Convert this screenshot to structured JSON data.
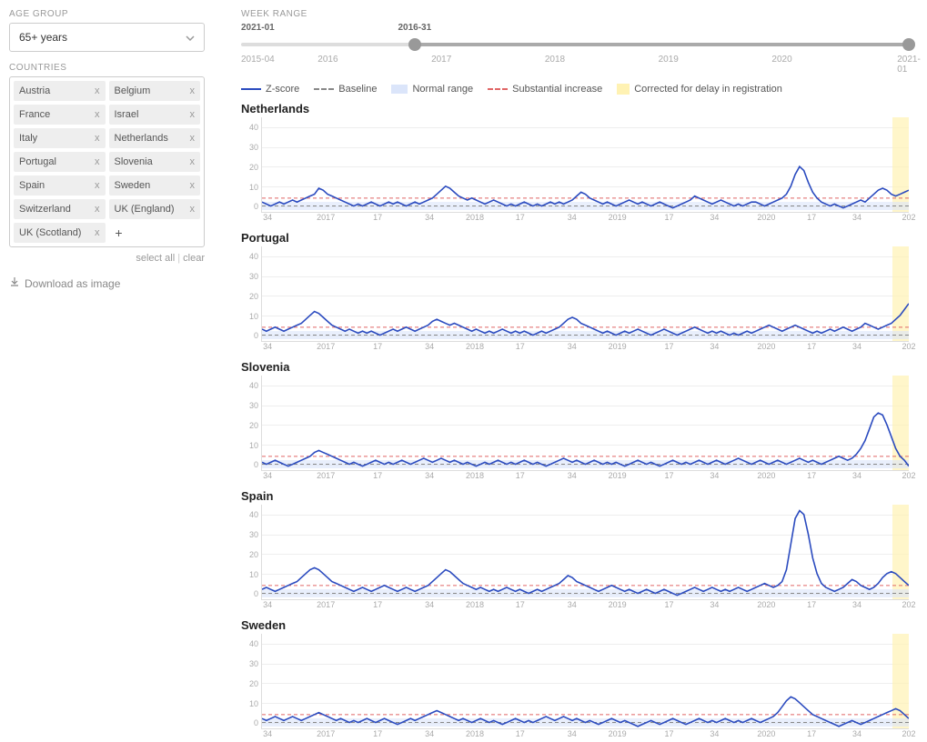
{
  "sidebar": {
    "age_group_label": "AGE GROUP",
    "age_group_value": "65+ years",
    "countries_label": "COUNTRIES",
    "countries": [
      "Austria",
      "Belgium",
      "France",
      "Israel",
      "Italy",
      "Netherlands",
      "Portugal",
      "Slovenia",
      "Spain",
      "Sweden",
      "Switzerland",
      "UK (England)",
      "UK (Scotland)"
    ],
    "select_all": "select all",
    "clear": "clear",
    "download": "Download as image"
  },
  "range": {
    "label": "WEEK RANGE",
    "min_label": "2015-04",
    "max_label": "2021-01",
    "start_label": "2016-31",
    "end_label": "2021-01",
    "start_pct": 26,
    "end_pct": 100,
    "year_ticks": [
      {
        "label": "2016",
        "pct": 13
      },
      {
        "label": "2017",
        "pct": 30
      },
      {
        "label": "2018",
        "pct": 47
      },
      {
        "label": "2019",
        "pct": 64
      },
      {
        "label": "2020",
        "pct": 81
      },
      {
        "label": "2021-01",
        "pct": 100
      }
    ]
  },
  "legend": {
    "zscore": "Z-score",
    "baseline": "Baseline",
    "normal": "Normal range",
    "substantial": "Substantial increase",
    "corrected": "Corrected for delay in registration"
  },
  "chart_common": {
    "y_ticks": [
      0,
      10,
      20,
      30,
      40
    ],
    "y_max": 45,
    "x_ticks": [
      {
        "label": "34",
        "pct": 1
      },
      {
        "label": "2017",
        "pct": 10
      },
      {
        "label": "17",
        "pct": 18
      },
      {
        "label": "34",
        "pct": 26
      },
      {
        "label": "2018",
        "pct": 33
      },
      {
        "label": "17",
        "pct": 40
      },
      {
        "label": "34",
        "pct": 48
      },
      {
        "label": "2019",
        "pct": 55
      },
      {
        "label": "17",
        "pct": 63
      },
      {
        "label": "34",
        "pct": 70
      },
      {
        "label": "2020",
        "pct": 78
      },
      {
        "label": "17",
        "pct": 85
      },
      {
        "label": "34",
        "pct": 92
      },
      {
        "label": "202",
        "pct": 100
      }
    ],
    "baseline_y": 0,
    "substantial_y": 4,
    "normal_band": {
      "low": -2,
      "high": 2
    },
    "correction_band_pct": {
      "from": 97.5,
      "to": 100
    },
    "colors": {
      "series": "#2b4bbf",
      "baseline": "#888888",
      "substantial": "#e06666",
      "normal_band": "#dbe5fa",
      "correction": "#fff2b3",
      "grid": "#eeeeee",
      "axis": "#dddddd",
      "tick_text": "#aaaaaa"
    },
    "line_width": 1.6
  },
  "charts": [
    {
      "title": "Netherlands",
      "values": [
        2,
        1,
        0,
        1,
        2,
        1,
        2,
        3,
        2,
        3,
        4,
        5,
        6,
        9,
        8,
        6,
        5,
        4,
        3,
        2,
        1,
        0,
        1,
        0,
        1,
        2,
        1,
        0,
        1,
        2,
        1,
        2,
        1,
        0,
        1,
        2,
        1,
        2,
        3,
        4,
        6,
        8,
        10,
        9,
        7,
        5,
        4,
        3,
        4,
        3,
        2,
        1,
        2,
        3,
        2,
        1,
        0,
        1,
        0,
        1,
        2,
        1,
        0,
        1,
        0,
        1,
        2,
        1,
        2,
        1,
        2,
        3,
        5,
        7,
        6,
        4,
        3,
        2,
        1,
        2,
        1,
        0,
        1,
        2,
        3,
        2,
        1,
        2,
        1,
        0,
        1,
        2,
        1,
        0,
        -1,
        0,
        1,
        2,
        3,
        5,
        4,
        3,
        2,
        1,
        2,
        3,
        2,
        1,
        0,
        1,
        0,
        1,
        2,
        2,
        1,
        0,
        1,
        2,
        3,
        4,
        6,
        10,
        16,
        20,
        18,
        12,
        7,
        4,
        2,
        1,
        0,
        1,
        0,
        -1,
        0,
        1,
        2,
        3,
        2,
        4,
        6,
        8,
        9,
        8,
        6,
        5,
        6,
        7,
        8
      ]
    },
    {
      "title": "Portugal",
      "values": [
        3,
        2,
        3,
        4,
        3,
        2,
        3,
        4,
        5,
        6,
        8,
        10,
        12,
        11,
        9,
        7,
        5,
        4,
        3,
        2,
        3,
        2,
        1,
        2,
        1,
        2,
        1,
        0,
        1,
        2,
        3,
        2,
        3,
        4,
        3,
        2,
        3,
        4,
        5,
        7,
        8,
        7,
        6,
        5,
        6,
        5,
        4,
        3,
        2,
        3,
        2,
        1,
        2,
        1,
        2,
        3,
        2,
        1,
        2,
        1,
        2,
        1,
        0,
        1,
        2,
        1,
        2,
        3,
        4,
        6,
        8,
        9,
        8,
        6,
        5,
        4,
        3,
        2,
        1,
        2,
        1,
        0,
        1,
        2,
        1,
        2,
        3,
        2,
        1,
        0,
        1,
        2,
        3,
        2,
        1,
        0,
        1,
        2,
        3,
        4,
        3,
        2,
        1,
        2,
        1,
        2,
        1,
        0,
        1,
        0,
        1,
        2,
        1,
        2,
        3,
        4,
        5,
        4,
        3,
        2,
        3,
        4,
        5,
        4,
        3,
        2,
        1,
        2,
        1,
        2,
        3,
        2,
        3,
        4,
        3,
        2,
        3,
        4,
        6,
        5,
        4,
        3,
        4,
        5,
        6,
        8,
        10,
        13,
        16
      ]
    },
    {
      "title": "Slovenia",
      "values": [
        1,
        0,
        1,
        2,
        1,
        0,
        -1,
        0,
        1,
        2,
        3,
        4,
        6,
        7,
        6,
        5,
        4,
        3,
        2,
        1,
        0,
        1,
        0,
        -1,
        0,
        1,
        2,
        1,
        0,
        1,
        0,
        1,
        2,
        1,
        0,
        1,
        2,
        3,
        2,
        1,
        2,
        3,
        2,
        1,
        2,
        1,
        0,
        1,
        0,
        -1,
        0,
        1,
        0,
        1,
        2,
        1,
        0,
        1,
        0,
        1,
        2,
        1,
        0,
        1,
        0,
        -1,
        0,
        1,
        2,
        3,
        2,
        1,
        2,
        1,
        0,
        1,
        2,
        1,
        0,
        1,
        0,
        1,
        0,
        -1,
        0,
        1,
        2,
        1,
        0,
        1,
        0,
        -1,
        0,
        1,
        2,
        1,
        0,
        1,
        0,
        1,
        2,
        1,
        0,
        1,
        2,
        1,
        0,
        1,
        2,
        3,
        2,
        1,
        0,
        1,
        2,
        1,
        0,
        1,
        2,
        1,
        0,
        1,
        2,
        3,
        2,
        1,
        2,
        1,
        0,
        1,
        2,
        3,
        4,
        3,
        2,
        3,
        5,
        8,
        12,
        18,
        24,
        26,
        25,
        20,
        14,
        8,
        4,
        2,
        -1
      ]
    },
    {
      "title": "Spain",
      "values": [
        2,
        3,
        2,
        1,
        2,
        3,
        4,
        5,
        6,
        8,
        10,
        12,
        13,
        12,
        10,
        8,
        6,
        5,
        4,
        3,
        2,
        1,
        2,
        3,
        2,
        1,
        2,
        3,
        4,
        3,
        2,
        1,
        2,
        3,
        2,
        1,
        2,
        3,
        4,
        6,
        8,
        10,
        12,
        11,
        9,
        7,
        5,
        4,
        3,
        2,
        3,
        2,
        1,
        2,
        1,
        2,
        3,
        2,
        1,
        2,
        1,
        0,
        1,
        2,
        1,
        2,
        3,
        4,
        5,
        7,
        9,
        8,
        6,
        5,
        4,
        3,
        2,
        1,
        2,
        3,
        4,
        3,
        2,
        1,
        2,
        1,
        0,
        1,
        2,
        1,
        0,
        1,
        2,
        1,
        0,
        -1,
        0,
        1,
        2,
        3,
        2,
        1,
        2,
        3,
        2,
        1,
        2,
        1,
        2,
        3,
        2,
        1,
        2,
        3,
        4,
        5,
        4,
        3,
        4,
        6,
        12,
        25,
        38,
        42,
        40,
        30,
        18,
        10,
        5,
        3,
        2,
        1,
        2,
        3,
        5,
        7,
        6,
        4,
        3,
        2,
        3,
        5,
        8,
        10,
        11,
        10,
        8,
        6,
        4
      ]
    },
    {
      "title": "Sweden",
      "values": [
        2,
        1,
        2,
        3,
        2,
        1,
        2,
        3,
        2,
        1,
        2,
        3,
        4,
        5,
        4,
        3,
        2,
        1,
        2,
        1,
        0,
        1,
        0,
        1,
        2,
        1,
        0,
        1,
        2,
        1,
        0,
        -1,
        0,
        1,
        2,
        1,
        2,
        3,
        4,
        5,
        6,
        5,
        4,
        3,
        2,
        1,
        2,
        1,
        0,
        1,
        2,
        1,
        0,
        1,
        0,
        -1,
        0,
        1,
        2,
        1,
        0,
        1,
        0,
        1,
        2,
        3,
        2,
        1,
        2,
        3,
        2,
        1,
        2,
        1,
        0,
        1,
        0,
        -1,
        0,
        1,
        2,
        1,
        0,
        1,
        0,
        -1,
        -2,
        -1,
        0,
        1,
        0,
        -1,
        0,
        1,
        2,
        1,
        0,
        -1,
        0,
        1,
        2,
        1,
        0,
        1,
        0,
        1,
        2,
        1,
        0,
        1,
        0,
        1,
        2,
        1,
        0,
        1,
        2,
        3,
        5,
        8,
        11,
        13,
        12,
        10,
        8,
        6,
        4,
        3,
        2,
        1,
        0,
        -1,
        -2,
        -1,
        0,
        1,
        0,
        -1,
        0,
        1,
        2,
        3,
        4,
        5,
        6,
        7,
        6,
        4,
        2
      ]
    }
  ]
}
